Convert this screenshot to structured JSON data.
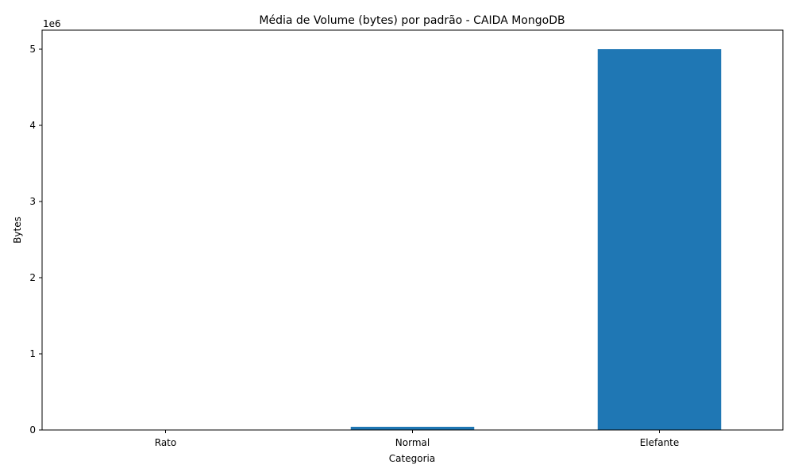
{
  "chart_data": {
    "type": "bar",
    "title": "Média de Volume (bytes) por padrão - CAIDA MongoDB",
    "xlabel": "Categoria",
    "ylabel": "Bytes",
    "categories": [
      "Rato",
      "Normal",
      "Elefante"
    ],
    "values": [
      1200,
      42000,
      5000000
    ],
    "ylim": [
      0,
      5250000
    ],
    "yticks": [
      0,
      1000000,
      2000000,
      3000000,
      4000000,
      5000000
    ],
    "ytick_labels": [
      "0",
      "1",
      "2",
      "3",
      "4",
      "5"
    ],
    "y_offset_label": "1e6",
    "bar_color": "#1f77b4",
    "grid": false,
    "legend": "none"
  }
}
